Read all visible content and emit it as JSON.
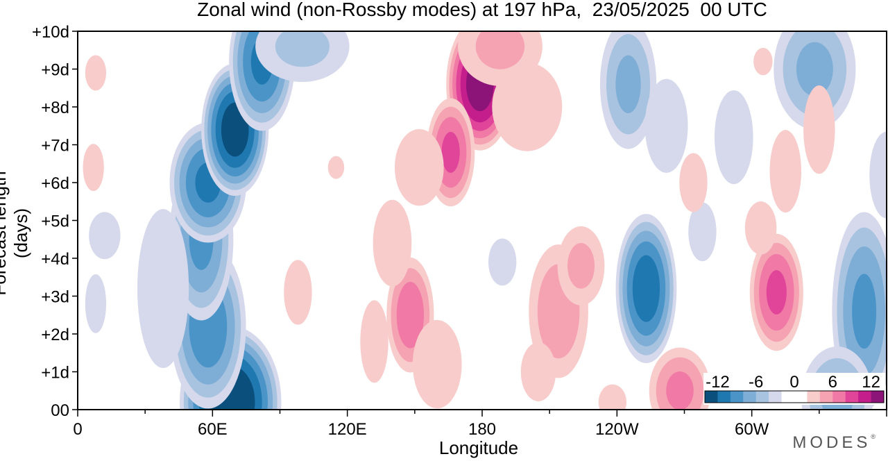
{
  "chart_data": {
    "type": "heatmap",
    "title": "Zonal wind (non-Rossby modes) at 197 hPa,  23/05/2025  00 UTC",
    "xlabel": "Longitude",
    "ylabel": "Forecast length (days)",
    "x_ticks": [
      {
        "lon": 0,
        "label": "0"
      },
      {
        "lon": 60,
        "label": "60E"
      },
      {
        "lon": 120,
        "label": "120E"
      },
      {
        "lon": 180,
        "label": "180"
      },
      {
        "lon": 240,
        "label": "120W"
      },
      {
        "lon": 300,
        "label": "60W"
      }
    ],
    "y_ticks": [
      {
        "day": 0,
        "label": "00"
      },
      {
        "day": 1,
        "label": "+1d"
      },
      {
        "day": 2,
        "label": "+2d"
      },
      {
        "day": 3,
        "label": "+3d"
      },
      {
        "day": 4,
        "label": "+4d"
      },
      {
        "day": 5,
        "label": "+5d"
      },
      {
        "day": 6,
        "label": "+6d"
      },
      {
        "day": 7,
        "label": "+7d"
      },
      {
        "day": 8,
        "label": "+8d"
      },
      {
        "day": 9,
        "label": "+9d"
      },
      {
        "day": 10,
        "label": "+10d"
      }
    ],
    "xlim": [
      0,
      360
    ],
    "ylim": [
      0,
      10
    ],
    "colorbar": {
      "labels": [
        {
          "value": -12,
          "text": "-12"
        },
        {
          "value": -6,
          "text": "-6"
        },
        {
          "value": 0,
          "text": "0"
        },
        {
          "value": 6,
          "text": "6"
        },
        {
          "value": 12,
          "text": "12"
        }
      ],
      "levels": [
        -14,
        -12,
        -10,
        -8,
        -6,
        -4,
        -2,
        0,
        2,
        4,
        6,
        8,
        10,
        12,
        14
      ],
      "colors": [
        "#0b4f7c",
        "#1f78b0",
        "#4a94c8",
        "#7eadd6",
        "#a8c3e0",
        "#d6d9ec",
        "#ffffff",
        "#ffffff",
        "#f8cccb",
        "#f5a3b3",
        "#f07aa5",
        "#e0459a",
        "#c31e8c",
        "#8c1479"
      ]
    },
    "features": [
      {
        "sign": "neg",
        "lon": 68,
        "day": 0.2,
        "dlon": 18,
        "dday": 1.6,
        "peak": -15
      },
      {
        "sign": "neg",
        "lon": 58,
        "day": 2.2,
        "dlon": 14,
        "dday": 1.8,
        "peak": -10
      },
      {
        "sign": "neg",
        "lon": 55,
        "day": 4.5,
        "dlon": 12,
        "dday": 1.8,
        "peak": -9
      },
      {
        "sign": "neg",
        "lon": 58,
        "day": 6.0,
        "dlon": 14,
        "dday": 1.3,
        "peak": -11
      },
      {
        "sign": "neg",
        "lon": 70,
        "day": 7.4,
        "dlon": 12,
        "dday": 1.4,
        "peak": -14
      },
      {
        "sign": "neg",
        "lon": 82,
        "day": 9.2,
        "dlon": 12,
        "dday": 1.5,
        "peak": -11
      },
      {
        "sign": "neg",
        "lon": 100,
        "day": 9.6,
        "dlon": 20,
        "dday": 0.9,
        "peak": -5
      },
      {
        "sign": "neg",
        "lon": 38,
        "day": 3.2,
        "dlon": 12,
        "dday": 2.2,
        "peak": -4
      },
      {
        "sign": "neg",
        "lon": 12,
        "day": 4.6,
        "dlon": 9,
        "dday": 0.8,
        "peak": -3
      },
      {
        "sign": "neg",
        "lon": 8,
        "day": 2.8,
        "dlon": 6,
        "dday": 1.0,
        "peak": -3
      },
      {
        "sign": "neg",
        "lon": 253,
        "day": 3.2,
        "dlon": 11,
        "dday": 1.6,
        "peak": -12
      },
      {
        "sign": "neg",
        "lon": 245,
        "day": 8.6,
        "dlon": 11,
        "dday": 1.5,
        "peak": -7
      },
      {
        "sign": "neg",
        "lon": 262,
        "day": 7.5,
        "dlon": 10,
        "dday": 1.3,
        "peak": -4
      },
      {
        "sign": "neg",
        "lon": 292,
        "day": 7.2,
        "dlon": 9,
        "dday": 1.3,
        "peak": -4
      },
      {
        "sign": "neg",
        "lon": 350,
        "day": 2.6,
        "dlon": 12,
        "dday": 2.2,
        "peak": -9
      },
      {
        "sign": "neg",
        "lon": 338,
        "day": 0.3,
        "dlon": 14,
        "dday": 1.2,
        "peak": -7
      },
      {
        "sign": "neg",
        "lon": 328,
        "day": 9.0,
        "dlon": 16,
        "dday": 1.4,
        "peak": -7
      },
      {
        "sign": "neg",
        "lon": 360,
        "day": 6.2,
        "dlon": 8,
        "dday": 1.2,
        "peak": -4
      },
      {
        "sign": "neg",
        "lon": 278,
        "day": 4.7,
        "dlon": 8,
        "dday": 1.0,
        "peak": -3
      },
      {
        "sign": "neg",
        "lon": 189,
        "day": 3.9,
        "dlon": 8,
        "dday": 0.8,
        "peak": -3
      },
      {
        "sign": "pos",
        "lon": 179,
        "day": 8.6,
        "dlon": 12,
        "dday": 1.4,
        "peak": 14
      },
      {
        "sign": "pos",
        "lon": 166,
        "day": 6.8,
        "dlon": 9,
        "dday": 1.2,
        "peak": 9
      },
      {
        "sign": "pos",
        "lon": 188,
        "day": 9.6,
        "dlon": 18,
        "dday": 1.0,
        "peak": 5
      },
      {
        "sign": "pos",
        "lon": 200,
        "day": 8.0,
        "dlon": 20,
        "dday": 1.5,
        "peak": 3
      },
      {
        "sign": "pos",
        "lon": 152,
        "day": 6.4,
        "dlon": 14,
        "dday": 1.3,
        "peak": 3
      },
      {
        "sign": "pos",
        "lon": 148,
        "day": 2.5,
        "dlon": 9,
        "dday": 1.3,
        "peak": 8
      },
      {
        "sign": "pos",
        "lon": 140,
        "day": 4.4,
        "dlon": 9,
        "dday": 1.2,
        "peak": 4
      },
      {
        "sign": "pos",
        "lon": 160,
        "day": 1.2,
        "dlon": 14,
        "dday": 1.5,
        "peak": 3
      },
      {
        "sign": "pos",
        "lon": 132,
        "day": 1.8,
        "dlon": 8,
        "dday": 1.4,
        "peak": 3
      },
      {
        "sign": "pos",
        "lon": 214,
        "day": 2.6,
        "dlon": 12,
        "dday": 1.6,
        "peak": 6
      },
      {
        "sign": "pos",
        "lon": 224,
        "day": 3.8,
        "dlon": 10,
        "dday": 1.0,
        "peak": 5
      },
      {
        "sign": "pos",
        "lon": 205,
        "day": 1.0,
        "dlon": 10,
        "dday": 1.0,
        "peak": 3
      },
      {
        "sign": "pos",
        "lon": 268,
        "day": 0.5,
        "dlon": 12,
        "dday": 1.0,
        "peak": 7
      },
      {
        "sign": "pos",
        "lon": 238,
        "day": 0.2,
        "dlon": 8,
        "dday": 0.6,
        "peak": 3
      },
      {
        "sign": "pos",
        "lon": 311,
        "day": 3.1,
        "dlon": 10,
        "dday": 1.3,
        "peak": 9
      },
      {
        "sign": "pos",
        "lon": 304,
        "day": 4.8,
        "dlon": 9,
        "dday": 0.9,
        "peak": 3
      },
      {
        "sign": "pos",
        "lon": 315,
        "day": 6.3,
        "dlon": 9,
        "dday": 1.4,
        "peak": 3
      },
      {
        "sign": "pos",
        "lon": 330,
        "day": 7.4,
        "dlon": 9,
        "dday": 1.5,
        "peak": 3
      },
      {
        "sign": "pos",
        "lon": 274,
        "day": 6.0,
        "dlon": 8,
        "dday": 1.0,
        "peak": 3
      },
      {
        "sign": "pos",
        "lon": 98,
        "day": 3.1,
        "dlon": 8,
        "dday": 1.1,
        "peak": 3
      },
      {
        "sign": "pos",
        "lon": 7,
        "day": 6.4,
        "dlon": 6,
        "dday": 0.8,
        "peak": 3
      },
      {
        "sign": "pos",
        "lon": 8,
        "day": 8.9,
        "dlon": 6,
        "dday": 0.6,
        "peak": 3
      },
      {
        "sign": "pos",
        "lon": 305,
        "day": 9.2,
        "dlon": 7,
        "dday": 0.6,
        "peak": 2.5
      },
      {
        "sign": "pos",
        "lon": 115,
        "day": 6.4,
        "dlon": 6,
        "dday": 0.5,
        "peak": 2.5
      }
    ]
  },
  "branding": {
    "wordmark": "MODES",
    "mark": "®"
  }
}
